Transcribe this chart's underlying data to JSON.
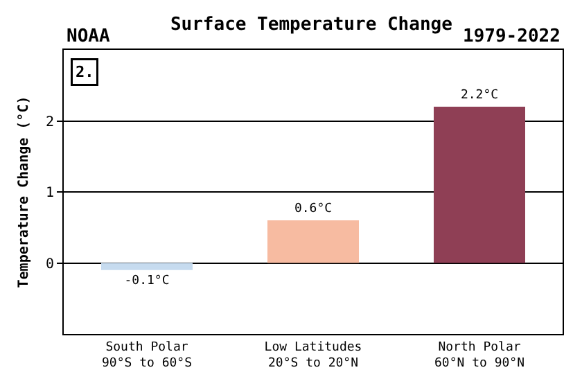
{
  "chart_data": {
    "type": "bar",
    "title": "Surface Temperature Change",
    "ylabel": "Temperature Change (°C)",
    "categories": [
      "South Polar\n90°S to 60°S",
      "Low Latitudes\n20°S to 20°N",
      "North Polar\n60°N to 90°N"
    ],
    "values": [
      -0.1,
      0.6,
      2.2
    ],
    "colors": [
      "#c6dbef",
      "#f7bba1",
      "#8f3f55"
    ],
    "value_labels": [
      "-0.1°C",
      "0.6°C",
      "2.2°C"
    ],
    "ylim": [
      -1,
      3
    ],
    "yticks": [
      0,
      1,
      2
    ],
    "grid": "y",
    "annotations": [
      "NOAA",
      "1979-2022",
      "2."
    ]
  }
}
